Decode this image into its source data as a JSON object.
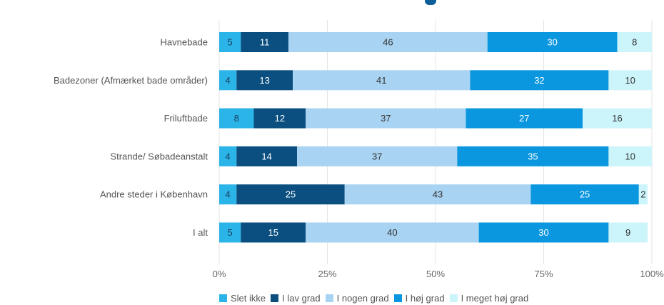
{
  "chart_data": {
    "type": "bar",
    "orientation": "horizontal",
    "stacked": true,
    "percent_stacked": true,
    "categories": [
      "Havnebade",
      "Badezoner (Afmærket bade områder)",
      "Friluftbade",
      "Strande/ Søbadeanstalt",
      "Andre steder i København",
      "I alt"
    ],
    "series": [
      {
        "name": "Slet ikke",
        "color": "#2bb4e8",
        "label_color": "#1a3d5c",
        "values": [
          5,
          4,
          8,
          4,
          4,
          5
        ]
      },
      {
        "name": "I lav grad",
        "color": "#0a4f80",
        "label_color": "#ffffff",
        "values": [
          11,
          13,
          12,
          14,
          25,
          15
        ]
      },
      {
        "name": "I nogen grad",
        "color": "#a8d3f2",
        "label_color": "#333333",
        "values": [
          46,
          41,
          37,
          37,
          43,
          40
        ]
      },
      {
        "name": "I høj grad",
        "color": "#0a97df",
        "label_color": "#ffffff",
        "values": [
          30,
          32,
          27,
          35,
          25,
          30
        ]
      },
      {
        "name": "I meget høj grad",
        "color": "#ccf4fb",
        "label_color": "#333333",
        "values": [
          8,
          10,
          16,
          10,
          2,
          9
        ]
      }
    ],
    "x_ticks": [
      "0%",
      "25%",
      "50%",
      "75%",
      "100%"
    ],
    "xlim": [
      0,
      100
    ],
    "grid": true,
    "legend": "bottom"
  }
}
